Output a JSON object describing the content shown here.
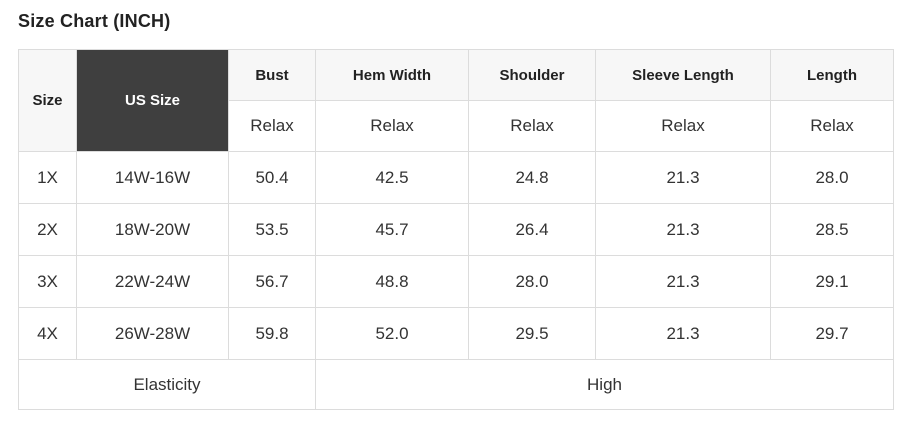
{
  "page": {
    "title": "Size Chart (INCH)"
  },
  "table": {
    "header": {
      "size_label": "Size",
      "us_size_label": "US Size",
      "measure_columns": [
        "Bust",
        "Hem Width",
        "Shoulder",
        "Sleeve Length",
        "Length"
      ],
      "fit_labels": [
        "Relax",
        "Relax",
        "Relax",
        "Relax",
        "Relax"
      ]
    },
    "rows": [
      {
        "size": "1X",
        "us_size": "14W-16W",
        "values": [
          "50.4",
          "42.5",
          "24.8",
          "21.3",
          "28.0"
        ]
      },
      {
        "size": "2X",
        "us_size": "18W-20W",
        "values": [
          "53.5",
          "45.7",
          "26.4",
          "21.3",
          "28.5"
        ]
      },
      {
        "size": "3X",
        "us_size": "22W-24W",
        "values": [
          "56.7",
          "48.8",
          "28.0",
          "21.3",
          "29.1"
        ]
      },
      {
        "size": "4X",
        "us_size": "26W-28W",
        "values": [
          "59.8",
          "52.0",
          "29.5",
          "21.3",
          "29.7"
        ]
      }
    ],
    "footer": {
      "elasticity_label": "Elasticity",
      "elasticity_value": "High"
    }
  },
  "colors": {
    "header_dark_bg": "#3f3f3f",
    "header_light_bg": "#f7f7f7",
    "border": "#dcdcdc",
    "text": "#333333",
    "inverse_text": "#ffffff"
  }
}
